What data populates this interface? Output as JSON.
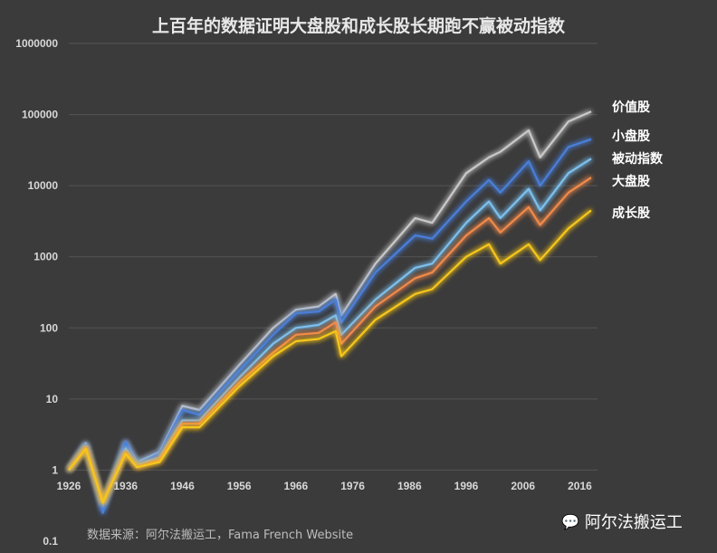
{
  "chart_data": {
    "type": "line",
    "title": "上百年的数据证明大盘股和成长股长期跑不赢被动指数",
    "yscale": "log",
    "ylim": [
      0.1,
      1000000
    ],
    "yticks": [
      "1000000",
      "100000",
      "10000",
      "1000",
      "100",
      "10",
      "1",
      "0.1"
    ],
    "ytick_values": [
      1000000,
      100000,
      10000,
      1000,
      100,
      10,
      1,
      0.1
    ],
    "xticks": [
      "1926",
      "1936",
      "1946",
      "1956",
      "1966",
      "1976",
      "1986",
      "1996",
      "2006",
      "2016"
    ],
    "xlim": [
      1926,
      2018
    ],
    "x": [
      1926,
      1929,
      1932,
      1936,
      1938,
      1942,
      1946,
      1949,
      1956,
      1962,
      1966,
      1970,
      1973,
      1974,
      1980,
      1987,
      1990,
      1996,
      2000,
      2002,
      2007,
      2009,
      2014,
      2018
    ],
    "series": [
      {
        "name": "价值股",
        "color": "#c9c9c9",
        "values": [
          1,
          2.4,
          0.3,
          2.5,
          1.3,
          1.8,
          8,
          7,
          30,
          100,
          180,
          200,
          300,
          150,
          800,
          3500,
          3000,
          15000,
          25000,
          30000,
          60000,
          25000,
          80000,
          110000
        ]
      },
      {
        "name": "小盘股",
        "color": "#4a7fd8",
        "values": [
          1,
          2.3,
          0.25,
          2.5,
          1.2,
          1.7,
          7,
          6,
          25,
          80,
          160,
          170,
          250,
          120,
          600,
          2000,
          1800,
          6000,
          12000,
          8000,
          22000,
          10000,
          35000,
          45000
        ]
      },
      {
        "name": "被动指数",
        "color": "#7cc0ee",
        "values": [
          1,
          2.2,
          0.35,
          2,
          1.2,
          1.5,
          5,
          5,
          20,
          60,
          100,
          110,
          150,
          80,
          250,
          700,
          800,
          3000,
          6000,
          3500,
          9000,
          4500,
          15000,
          24000
        ]
      },
      {
        "name": "大盘股",
        "color": "#f08a4b",
        "values": [
          1,
          2.1,
          0.35,
          1.8,
          1.1,
          1.4,
          4.5,
          4.5,
          17,
          45,
          80,
          85,
          120,
          60,
          200,
          500,
          600,
          2000,
          3500,
          2200,
          5000,
          2800,
          8000,
          13000
        ]
      },
      {
        "name": "成长股",
        "color": "#f6c61a",
        "values": [
          1,
          2.0,
          0.35,
          1.7,
          1.1,
          1.3,
          4,
          4,
          15,
          40,
          65,
          70,
          90,
          40,
          130,
          300,
          350,
          1000,
          1500,
          800,
          1500,
          900,
          2500,
          4500
        ]
      }
    ],
    "grid": true
  },
  "source": "数据来源：阿尔法搬运工，Fama French Website",
  "brand": "阿尔法搬运工"
}
